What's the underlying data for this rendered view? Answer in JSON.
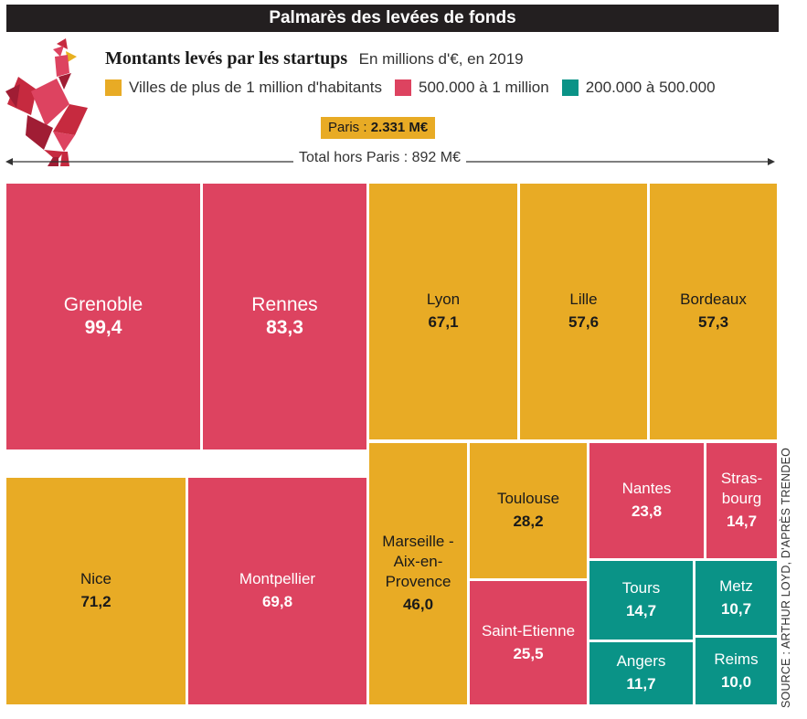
{
  "header": {
    "banner": "Palmarès des levées de fonds",
    "title": "Montants levés par les startups",
    "unit": "En millions d'€, en 2019"
  },
  "legend": [
    {
      "label": "Villes de plus de 1 million d'habitants",
      "color": "#e8ab25"
    },
    {
      "label": "500.000 à 1 million",
      "color": "#dd4360"
    },
    {
      "label": "200.000 à 500.000",
      "color": "#0a9387"
    }
  ],
  "paris": {
    "prefix": "Paris : ",
    "amount": "2.331 M€"
  },
  "total_label": "Total hors Paris : 892 M€",
  "source": "SOURCE : ARTHUR LOYD, D'APRÈS TRENDEO",
  "chart_data": {
    "type": "treemap",
    "unit": "M€",
    "categories": [
      {
        "name": "Villes de plus de 1 million d'habitants",
        "color": "#e8ab25"
      },
      {
        "name": "500.000 à 1 million",
        "color": "#dd4360"
      },
      {
        "name": "200.000 à 500.000",
        "color": "#0a9387"
      }
    ],
    "items": [
      {
        "name": "Grenoble",
        "value": 99.4,
        "label": "99,4",
        "category": 1
      },
      {
        "name": "Rennes",
        "value": 83.3,
        "label": "83,3",
        "category": 1
      },
      {
        "name": "Nice",
        "value": 71.2,
        "label": "71,2",
        "category": 0
      },
      {
        "name": "Montpellier",
        "value": 69.8,
        "label": "69,8",
        "category": 1
      },
      {
        "name": "Lyon",
        "value": 67.1,
        "label": "67,1",
        "category": 0
      },
      {
        "name": "Lille",
        "value": 57.6,
        "label": "57,6",
        "category": 0
      },
      {
        "name": "Bordeaux",
        "value": 57.3,
        "label": "57,3",
        "category": 0
      },
      {
        "name": "Marseille - Aix-en- Provence",
        "value": 46.0,
        "label": "46,0",
        "category": 0
      },
      {
        "name": "Toulouse",
        "value": 28.2,
        "label": "28,2",
        "category": 0
      },
      {
        "name": "Saint-Etienne",
        "value": 25.5,
        "label": "25,5",
        "category": 1
      },
      {
        "name": "Nantes",
        "value": 23.8,
        "label": "23,8",
        "category": 1
      },
      {
        "name": "Stras- bourg",
        "value": 14.7,
        "label": "14,7",
        "category": 1
      },
      {
        "name": "Tours",
        "value": 14.7,
        "label": "14,7",
        "category": 2
      },
      {
        "name": "Metz",
        "value": 10.7,
        "label": "10,7",
        "category": 2
      },
      {
        "name": "Angers",
        "value": 11.7,
        "label": "11,7",
        "category": 2
      },
      {
        "name": "Reims",
        "value": 10.0,
        "label": "10,0",
        "category": 2
      }
    ]
  }
}
